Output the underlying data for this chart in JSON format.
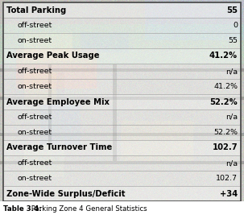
{
  "title": "Table 3.4: Parking Zone 4 General Statistics",
  "rows": [
    {
      "label": "Total Parking",
      "value": "55",
      "bold": true
    },
    {
      "label": "off-street",
      "value": "0",
      "bold": false
    },
    {
      "label": "on-street",
      "value": "55",
      "bold": false
    },
    {
      "label": "Average Peak Usage",
      "value": "41.2%",
      "bold": true
    },
    {
      "label": "off-street",
      "value": "n/a",
      "bold": false
    },
    {
      "label": "on-street",
      "value": "41.2%",
      "bold": false
    },
    {
      "label": "Average Employee Mix",
      "value": "52.2%",
      "bold": true
    },
    {
      "label": "off-street",
      "value": "n/a",
      "bold": false
    },
    {
      "label": "on-street",
      "value": "52.2%",
      "bold": false
    },
    {
      "label": "Average Turnover Time",
      "value": "102.7",
      "bold": true
    },
    {
      "label": "off-street",
      "value": "n/a",
      "bold": false
    },
    {
      "label": "on-street",
      "value": "102.7",
      "bold": false
    },
    {
      "label": "Zone-Wide Surplus/Deficit",
      "value": "+34",
      "bold": true
    }
  ],
  "caption_bold": "Table 3.4:",
  "caption_rest": " Parking Zone 4 General Statistics",
  "border_color": "#444444",
  "text_color": "#000000",
  "header_row_alpha": 0.55,
  "sub_row_alpha": 0.45,
  "font_size_header": 7.2,
  "font_size_sub": 6.8,
  "caption_fontsize": 6.2,
  "indent": 0.06
}
